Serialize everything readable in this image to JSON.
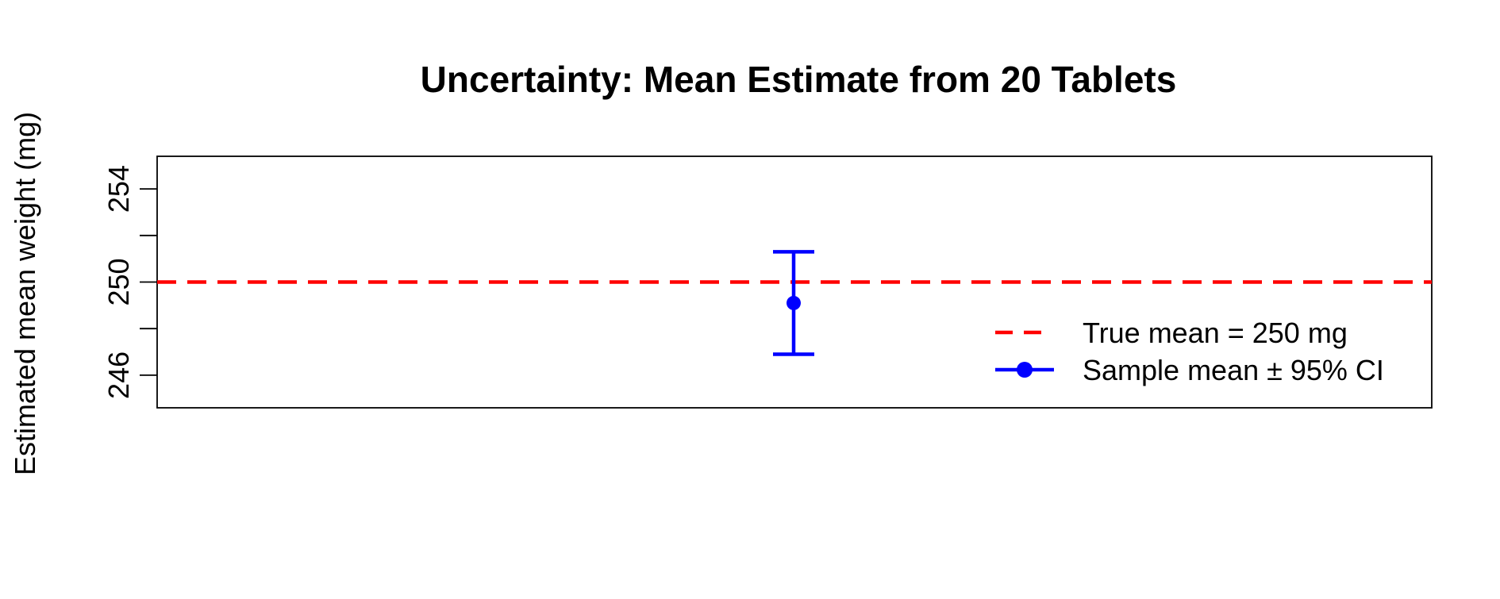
{
  "chart_data": {
    "type": "scatter",
    "title": "Uncertainty: Mean Estimate from 20 Tablets",
    "xlabel": "",
    "ylabel": "Estimated mean weight (mg)",
    "ylim": [
      244.6,
      255.4
    ],
    "y_ticks": [
      246,
      248,
      250,
      252,
      254
    ],
    "y_tick_labels": [
      "246",
      "",
      "250",
      "",
      "254"
    ],
    "x_axis_shown": false,
    "grid": false,
    "reference_line": {
      "y": 250,
      "style": "dashed",
      "color": "#ff0000",
      "legend": "True mean = 250 mg"
    },
    "series": [
      {
        "name": "Sample mean ± 95% CI",
        "color": "#0000ff",
        "x": 1,
        "mean": 249.1,
        "ci_lower": 246.9,
        "ci_upper": 251.3
      }
    ],
    "legend_position": "bottom-right"
  }
}
